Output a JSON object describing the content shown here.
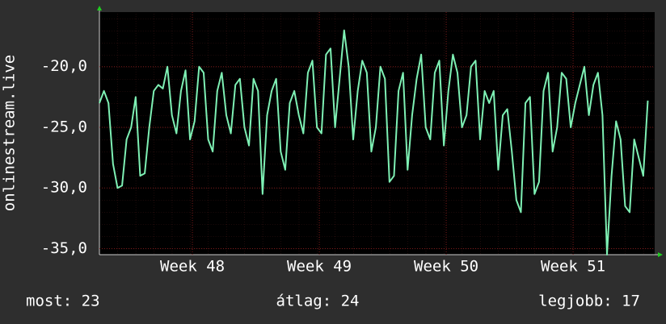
{
  "chart_data": {
    "type": "line",
    "ylabel": "onlinestream.live",
    "x": [
      0,
      0.25,
      0.5,
      0.75,
      1,
      1.25,
      1.5,
      1.75,
      2,
      2.25,
      2.5,
      2.75,
      3,
      3.25,
      3.5,
      3.75,
      4,
      4.25,
      4.5,
      4.75,
      5,
      5.25,
      5.5,
      5.75,
      6,
      6.25,
      6.5,
      6.75,
      7,
      7.25,
      7.5,
      7.75,
      8,
      8.25,
      8.5,
      8.75,
      9,
      9.25,
      9.5,
      9.75,
      10,
      10.25,
      10.5,
      10.75,
      11,
      11.25,
      11.5,
      11.75,
      12,
      12.25,
      12.5,
      12.75,
      13,
      13.25,
      13.5,
      13.75,
      14,
      14.25,
      14.5,
      14.75,
      15,
      15.25,
      15.5,
      15.75,
      16,
      16.25,
      16.5,
      16.75,
      17,
      17.25,
      17.5,
      17.75,
      18,
      18.25,
      18.5,
      18.75,
      19,
      19.25,
      19.5,
      19.75,
      20,
      20.25,
      20.5,
      20.75,
      21,
      21.25,
      21.5,
      21.75,
      22,
      22.25,
      22.5,
      22.75,
      23,
      23.25,
      23.5,
      23.75,
      24,
      24.25,
      24.5,
      24.75,
      25,
      25.25,
      25.5,
      25.75,
      26,
      26.25,
      26.5,
      26.75,
      27,
      27.25,
      27.5,
      27.75,
      28,
      28.25,
      28.5,
      28.75,
      29,
      29.25,
      29.5,
      29.75,
      30,
      30.25
    ],
    "series": [
      {
        "name": "onlinestream.live",
        "color": "#7ef0b4",
        "values": [
          -23,
          -22,
          -23,
          -28,
          -30,
          -29.8,
          -26,
          -25,
          -22.5,
          -29,
          -28.8,
          -25,
          -22,
          -21.5,
          -21.8,
          -20,
          -24,
          -25.5,
          -22,
          -20.3,
          -26,
          -24.5,
          -20,
          -20.5,
          -26,
          -27,
          -22,
          -20.5,
          -24,
          -25.5,
          -21.5,
          -21,
          -25,
          -26.5,
          -21,
          -22,
          -30.5,
          -24,
          -22,
          -21,
          -27,
          -28.5,
          -23,
          -22,
          -24,
          -25.5,
          -20.5,
          -19.5,
          -25,
          -25.5,
          -19,
          -18.5,
          -25,
          -21,
          -17,
          -20,
          -26,
          -22,
          -19.5,
          -20.5,
          -27,
          -25,
          -20,
          -21,
          -29.5,
          -29,
          -22,
          -20.5,
          -28.5,
          -24,
          -21,
          -19,
          -25,
          -26,
          -20.5,
          -19.5,
          -26.5,
          -22,
          -19,
          -20.5,
          -25,
          -24,
          -20,
          -19.5,
          -26,
          -22,
          -23,
          -22,
          -28.5,
          -24,
          -23.5,
          -27,
          -31,
          -32,
          -23,
          -22.5,
          -30.5,
          -29.5,
          -22,
          -20.5,
          -27,
          -25,
          -20.5,
          -21,
          -25,
          -23,
          -21.5,
          -20,
          -24,
          -21.5,
          -20.5,
          -24,
          -35.5,
          -29,
          -24.5,
          -26,
          -31.5,
          -32,
          -26,
          -27.5,
          -29,
          -22.8
        ]
      }
    ],
    "xlim": [
      0,
      30.63
    ],
    "xticks": [
      {
        "value": 5.13,
        "label": "Week 48"
      },
      {
        "value": 12.13,
        "label": "Week 49"
      },
      {
        "value": 19.13,
        "label": "Week 50"
      },
      {
        "value": 26.13,
        "label": "Week 51"
      }
    ],
    "ylim": [
      -35.5,
      -15.5
    ],
    "yticks": [
      {
        "value": -35,
        "label": "-35,0"
      },
      {
        "value": -30,
        "label": "-30,0"
      },
      {
        "value": -25,
        "label": "-25,0"
      },
      {
        "value": -20,
        "label": "-20,0"
      }
    ],
    "grid": true,
    "footer": {
      "left": "most: 23",
      "center": "átlag: 24",
      "right": "legjobb: 17"
    }
  }
}
